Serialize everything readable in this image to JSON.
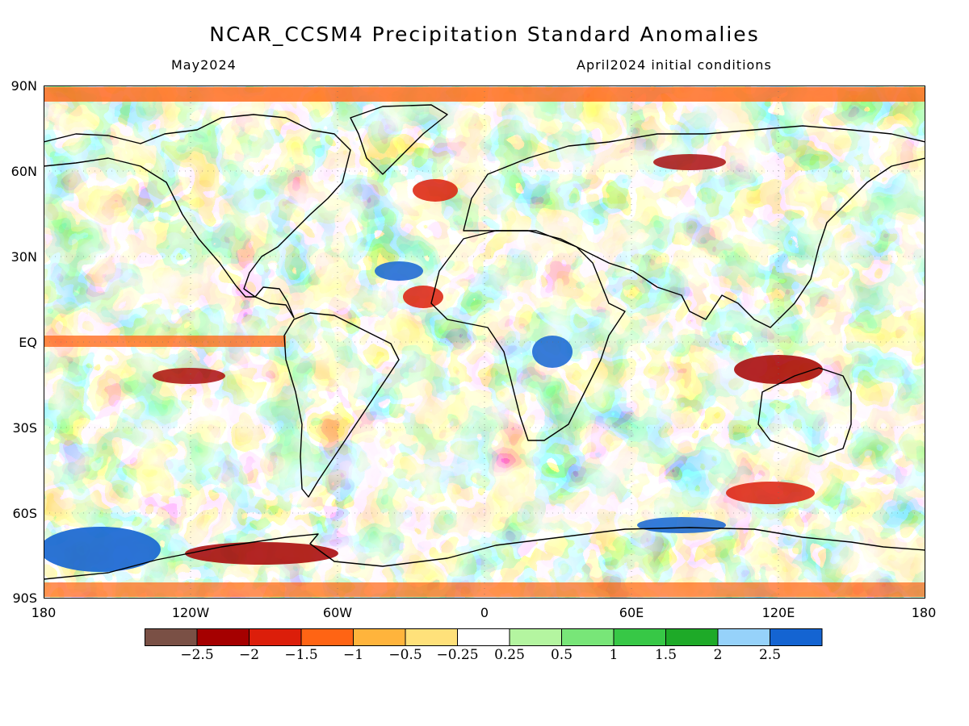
{
  "title": "NCAR_CCSM4 Precipitation Standard Anomalies",
  "subtitle_left": "May2024",
  "subtitle_right": "April2024 initial conditions",
  "map": {
    "lat_labels": [
      "90N",
      "60N",
      "30N",
      "EQ",
      "30S",
      "60S",
      "90S"
    ],
    "lon_labels": [
      "180",
      "120W",
      "60W",
      "0",
      "60E",
      "120E",
      "180"
    ],
    "lat_range": [
      -90,
      90
    ],
    "lon_range": [
      -180,
      180
    ],
    "field": "standardized precipitation anomaly"
  },
  "legend": {
    "colors": [
      "#7a5045",
      "#a50000",
      "#dc1e0a",
      "#ff6414",
      "#ffb43c",
      "#ffe17a",
      "#ffffff",
      "#b4f5a0",
      "#78e678",
      "#37c846",
      "#1eaa28",
      "#96d2fa",
      "#1464d2"
    ],
    "labels": [
      "−2.5",
      "−2",
      "−1.5",
      "−1",
      "−0.5",
      "−0.25",
      "0.25",
      "0.5",
      "1",
      "1.5",
      "2",
      "2.5"
    ]
  }
}
